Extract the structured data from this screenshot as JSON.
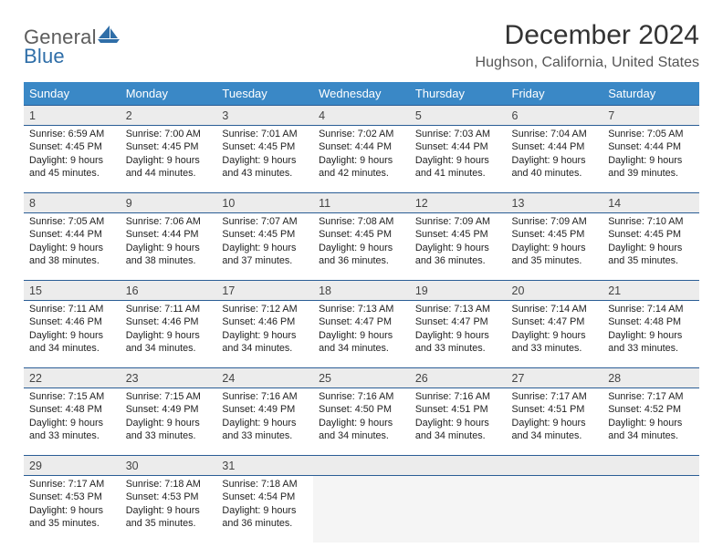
{
  "brand": {
    "general": "General",
    "blue": "Blue"
  },
  "title": "December 2024",
  "location": "Hughson, California, United States",
  "style": {
    "header_bg": "#3a88c6",
    "header_text": "#ffffff",
    "rule_color": "#2a5d95",
    "daynum_bg": "#ececec",
    "page_bg": "#ffffff",
    "text_color": "#222222",
    "title_fontsize": 30,
    "location_fontsize": 16,
    "header_fontsize": 13,
    "daynum_fontsize": 12.5,
    "body_fontsize": 10.8,
    "col_count": 7
  },
  "day_headers": [
    "Sunday",
    "Monday",
    "Tuesday",
    "Wednesday",
    "Thursday",
    "Friday",
    "Saturday"
  ],
  "weeks": [
    [
      {
        "n": "1",
        "sr": "6:59 AM",
        "ss": "4:45 PM",
        "dl": "9 hours and 45 minutes."
      },
      {
        "n": "2",
        "sr": "7:00 AM",
        "ss": "4:45 PM",
        "dl": "9 hours and 44 minutes."
      },
      {
        "n": "3",
        "sr": "7:01 AM",
        "ss": "4:45 PM",
        "dl": "9 hours and 43 minutes."
      },
      {
        "n": "4",
        "sr": "7:02 AM",
        "ss": "4:44 PM",
        "dl": "9 hours and 42 minutes."
      },
      {
        "n": "5",
        "sr": "7:03 AM",
        "ss": "4:44 PM",
        "dl": "9 hours and 41 minutes."
      },
      {
        "n": "6",
        "sr": "7:04 AM",
        "ss": "4:44 PM",
        "dl": "9 hours and 40 minutes."
      },
      {
        "n": "7",
        "sr": "7:05 AM",
        "ss": "4:44 PM",
        "dl": "9 hours and 39 minutes."
      }
    ],
    [
      {
        "n": "8",
        "sr": "7:05 AM",
        "ss": "4:44 PM",
        "dl": "9 hours and 38 minutes."
      },
      {
        "n": "9",
        "sr": "7:06 AM",
        "ss": "4:44 PM",
        "dl": "9 hours and 38 minutes."
      },
      {
        "n": "10",
        "sr": "7:07 AM",
        "ss": "4:45 PM",
        "dl": "9 hours and 37 minutes."
      },
      {
        "n": "11",
        "sr": "7:08 AM",
        "ss": "4:45 PM",
        "dl": "9 hours and 36 minutes."
      },
      {
        "n": "12",
        "sr": "7:09 AM",
        "ss": "4:45 PM",
        "dl": "9 hours and 36 minutes."
      },
      {
        "n": "13",
        "sr": "7:09 AM",
        "ss": "4:45 PM",
        "dl": "9 hours and 35 minutes."
      },
      {
        "n": "14",
        "sr": "7:10 AM",
        "ss": "4:45 PM",
        "dl": "9 hours and 35 minutes."
      }
    ],
    [
      {
        "n": "15",
        "sr": "7:11 AM",
        "ss": "4:46 PM",
        "dl": "9 hours and 34 minutes."
      },
      {
        "n": "16",
        "sr": "7:11 AM",
        "ss": "4:46 PM",
        "dl": "9 hours and 34 minutes."
      },
      {
        "n": "17",
        "sr": "7:12 AM",
        "ss": "4:46 PM",
        "dl": "9 hours and 34 minutes."
      },
      {
        "n": "18",
        "sr": "7:13 AM",
        "ss": "4:47 PM",
        "dl": "9 hours and 34 minutes."
      },
      {
        "n": "19",
        "sr": "7:13 AM",
        "ss": "4:47 PM",
        "dl": "9 hours and 33 minutes."
      },
      {
        "n": "20",
        "sr": "7:14 AM",
        "ss": "4:47 PM",
        "dl": "9 hours and 33 minutes."
      },
      {
        "n": "21",
        "sr": "7:14 AM",
        "ss": "4:48 PM",
        "dl": "9 hours and 33 minutes."
      }
    ],
    [
      {
        "n": "22",
        "sr": "7:15 AM",
        "ss": "4:48 PM",
        "dl": "9 hours and 33 minutes."
      },
      {
        "n": "23",
        "sr": "7:15 AM",
        "ss": "4:49 PM",
        "dl": "9 hours and 33 minutes."
      },
      {
        "n": "24",
        "sr": "7:16 AM",
        "ss": "4:49 PM",
        "dl": "9 hours and 33 minutes."
      },
      {
        "n": "25",
        "sr": "7:16 AM",
        "ss": "4:50 PM",
        "dl": "9 hours and 34 minutes."
      },
      {
        "n": "26",
        "sr": "7:16 AM",
        "ss": "4:51 PM",
        "dl": "9 hours and 34 minutes."
      },
      {
        "n": "27",
        "sr": "7:17 AM",
        "ss": "4:51 PM",
        "dl": "9 hours and 34 minutes."
      },
      {
        "n": "28",
        "sr": "7:17 AM",
        "ss": "4:52 PM",
        "dl": "9 hours and 34 minutes."
      }
    ],
    [
      {
        "n": "29",
        "sr": "7:17 AM",
        "ss": "4:53 PM",
        "dl": "9 hours and 35 minutes."
      },
      {
        "n": "30",
        "sr": "7:18 AM",
        "ss": "4:53 PM",
        "dl": "9 hours and 35 minutes."
      },
      {
        "n": "31",
        "sr": "7:18 AM",
        "ss": "4:54 PM",
        "dl": "9 hours and 36 minutes."
      },
      null,
      null,
      null,
      null
    ]
  ],
  "labels": {
    "sunrise": "Sunrise: ",
    "sunset": "Sunset: ",
    "daylight": "Daylight: "
  }
}
